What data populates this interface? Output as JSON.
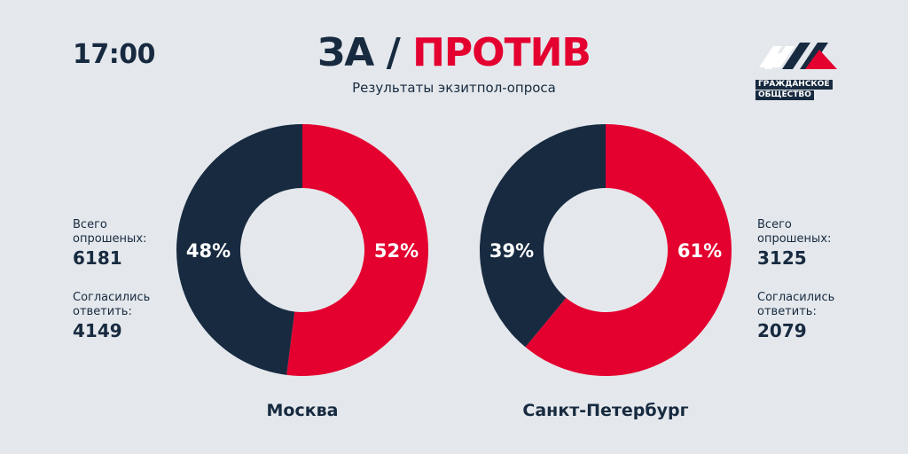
{
  "time": "17:00",
  "title": {
    "za": "ЗА",
    "slash": "/",
    "protiv": "ПРОТИВ"
  },
  "subtitle": "Результаты экзитпол-опроса",
  "logo": {
    "line1": "ГРАЖДАНСКОЕ",
    "line2": "ОБЩЕСТВО",
    "icon": "civil-society-logo-icon"
  },
  "colors": {
    "za": "#172a40",
    "protiv": "#e4002f",
    "background": "#e4e8ec"
  },
  "chart_data": [
    {
      "type": "pie",
      "title": "Москва",
      "donut": true,
      "slices": [
        {
          "name": "ЗА",
          "value": 48,
          "label": "48%",
          "color": "#172a40"
        },
        {
          "name": "ПРОТИВ",
          "value": 52,
          "label": "52%",
          "color": "#e4002f"
        }
      ]
    },
    {
      "type": "pie",
      "title": "Санкт-Петербург",
      "donut": true,
      "slices": [
        {
          "name": "ЗА",
          "value": 39,
          "label": "39%",
          "color": "#172a40"
        },
        {
          "name": "ПРОТИВ",
          "value": 61,
          "label": "61%",
          "color": "#e4002f"
        }
      ]
    }
  ],
  "stats": {
    "moscow": {
      "total_label_1": "Всего",
      "total_label_2": "опрошеных:",
      "total_value": "6181",
      "agreed_label_1": "Согласились",
      "agreed_label_2": "ответить:",
      "agreed_value": "4149"
    },
    "spb": {
      "total_label_1": "Всего",
      "total_label_2": "опрошеных:",
      "total_value": "3125",
      "agreed_label_1": "Согласились",
      "agreed_label_2": "ответить:",
      "agreed_value": "2079"
    }
  }
}
